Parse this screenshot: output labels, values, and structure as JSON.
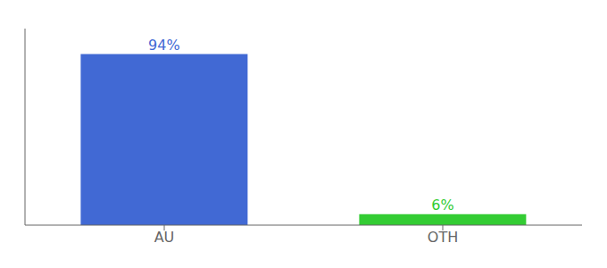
{
  "chart_data": {
    "type": "bar",
    "categories": [
      "AU",
      "OTH"
    ],
    "values": [
      94,
      6
    ],
    "value_labels": [
      "94%",
      "6%"
    ],
    "data_labels": true,
    "colors": [
      "#4169d4",
      "#33cc33"
    ],
    "ylim": [
      0,
      108
    ],
    "tick_labels": "x",
    "grid": false
  }
}
